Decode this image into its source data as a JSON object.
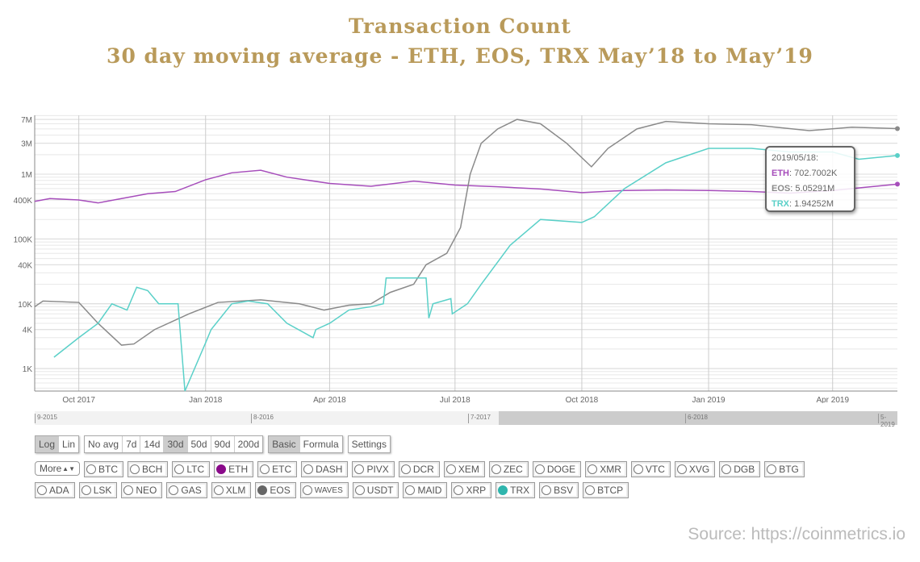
{
  "title_line1": "Transaction Count",
  "title_line2": "30 day moving average - ETH, EOS, TRX May’18 to May’19",
  "source": "Source: https://coinmetrics.io",
  "colors": {
    "ETH": "#a64dbb",
    "EOS": "#8a8a8a",
    "TRX": "#5ad0c8",
    "title": "#b99a5a"
  },
  "chart_data": {
    "type": "line",
    "title": "Transaction Count",
    "subtitle": "30 day moving average - ETH, EOS, TRX May’18 to May’19",
    "y_scale": "log",
    "ylim": [
      450,
      8100000
    ],
    "xlim": [
      "2017-08-30",
      "2019-05-18"
    ],
    "grid": true,
    "y_ticks": [
      {
        "v": 7000000,
        "label": "7M"
      },
      {
        "v": 3000000,
        "label": "3M"
      },
      {
        "v": 1000000,
        "label": "1M"
      },
      {
        "v": 400000,
        "label": "400K"
      },
      {
        "v": 100000,
        "label": "100K"
      },
      {
        "v": 40000,
        "label": "40K"
      },
      {
        "v": 10000,
        "label": "10K"
      },
      {
        "v": 4000,
        "label": "4K"
      },
      {
        "v": 1000,
        "label": "1K"
      }
    ],
    "x_ticks": [
      {
        "d": "2017-10-01",
        "label": "Oct 2017"
      },
      {
        "d": "2018-01-01",
        "label": "Jan 2018"
      },
      {
        "d": "2018-04-01",
        "label": "Apr 2018"
      },
      {
        "d": "2018-07-01",
        "label": "Jul 2018"
      },
      {
        "d": "2018-10-01",
        "label": "Oct 2018"
      },
      {
        "d": "2019-01-01",
        "label": "Jan 2019"
      },
      {
        "d": "2019-04-01",
        "label": "Apr 2019"
      }
    ],
    "series": [
      {
        "name": "ETH",
        "points": [
          [
            "2017-08-30",
            380000
          ],
          [
            "2017-09-10",
            420000
          ],
          [
            "2017-10-01",
            400000
          ],
          [
            "2017-10-15",
            360000
          ],
          [
            "2017-11-01",
            420000
          ],
          [
            "2017-11-20",
            500000
          ],
          [
            "2017-12-10",
            540000
          ],
          [
            "2018-01-01",
            820000
          ],
          [
            "2018-01-20",
            1050000
          ],
          [
            "2018-02-10",
            1150000
          ],
          [
            "2018-03-01",
            900000
          ],
          [
            "2018-04-01",
            720000
          ],
          [
            "2018-05-01",
            650000
          ],
          [
            "2018-06-01",
            780000
          ],
          [
            "2018-07-01",
            680000
          ],
          [
            "2018-08-01",
            640000
          ],
          [
            "2018-09-01",
            590000
          ],
          [
            "2018-10-01",
            520000
          ],
          [
            "2018-11-01",
            560000
          ],
          [
            "2018-12-01",
            570000
          ],
          [
            "2019-01-01",
            560000
          ],
          [
            "2019-02-01",
            540000
          ],
          [
            "2019-03-01",
            510000
          ],
          [
            "2019-04-01",
            560000
          ],
          [
            "2019-05-18",
            702700
          ]
        ]
      },
      {
        "name": "EOS",
        "points": [
          [
            "2017-08-30",
            9000
          ],
          [
            "2017-09-05",
            11000
          ],
          [
            "2017-10-01",
            10500
          ],
          [
            "2017-10-15",
            5000
          ],
          [
            "2017-11-01",
            2300
          ],
          [
            "2017-11-10",
            2400
          ],
          [
            "2017-11-25",
            4000
          ],
          [
            "2017-12-20",
            7000
          ],
          [
            "2018-01-10",
            10500
          ],
          [
            "2018-02-10",
            11500
          ],
          [
            "2018-03-10",
            10000
          ],
          [
            "2018-03-28",
            8000
          ],
          [
            "2018-04-15",
            9500
          ],
          [
            "2018-05-01",
            10000
          ],
          [
            "2018-05-15",
            15000
          ],
          [
            "2018-06-01",
            20000
          ],
          [
            "2018-06-10",
            40000
          ],
          [
            "2018-06-25",
            60000
          ],
          [
            "2018-07-05",
            150000
          ],
          [
            "2018-07-12",
            1000000
          ],
          [
            "2018-07-20",
            3000000
          ],
          [
            "2018-08-01",
            5000000
          ],
          [
            "2018-08-15",
            7000000
          ],
          [
            "2018-09-01",
            6000000
          ],
          [
            "2018-09-20",
            3000000
          ],
          [
            "2018-10-08",
            1300000
          ],
          [
            "2018-10-20",
            2500000
          ],
          [
            "2018-11-10",
            5000000
          ],
          [
            "2018-12-01",
            6500000
          ],
          [
            "2019-01-01",
            6000000
          ],
          [
            "2019-02-01",
            5800000
          ],
          [
            "2019-03-15",
            4700000
          ],
          [
            "2019-04-15",
            5300000
          ],
          [
            "2019-05-18",
            5052910
          ]
        ]
      },
      {
        "name": "TRX",
        "points": [
          [
            "2017-09-13",
            1500
          ],
          [
            "2017-10-01",
            3000
          ],
          [
            "2017-10-15",
            5000
          ],
          [
            "2017-10-25",
            10000
          ],
          [
            "2017-11-05",
            8000
          ],
          [
            "2017-11-12",
            18000
          ],
          [
            "2017-11-20",
            16000
          ],
          [
            "2017-11-28",
            10000
          ],
          [
            "2017-12-12",
            10000
          ],
          [
            "2017-12-17",
            450
          ],
          [
            "2018-01-01",
            2500
          ],
          [
            "2018-01-05",
            4000
          ],
          [
            "2018-01-20",
            10000
          ],
          [
            "2018-02-01",
            11000
          ],
          [
            "2018-02-15",
            10000
          ],
          [
            "2018-03-01",
            5000
          ],
          [
            "2018-03-20",
            3000
          ],
          [
            "2018-03-22",
            4000
          ],
          [
            "2018-04-01",
            5000
          ],
          [
            "2018-04-15",
            8000
          ],
          [
            "2018-05-01",
            9000
          ],
          [
            "2018-05-10",
            10000
          ],
          [
            "2018-05-12",
            25000
          ],
          [
            "2018-06-10",
            25000
          ],
          [
            "2018-06-12",
            6000
          ],
          [
            "2018-06-15",
            10000
          ],
          [
            "2018-06-28",
            12000
          ],
          [
            "2018-06-29",
            7000
          ],
          [
            "2018-07-10",
            10000
          ],
          [
            "2018-07-20",
            20000
          ],
          [
            "2018-08-10",
            80000
          ],
          [
            "2018-09-01",
            200000
          ],
          [
            "2018-10-01",
            180000
          ],
          [
            "2018-10-10",
            220000
          ],
          [
            "2018-11-01",
            600000
          ],
          [
            "2018-12-01",
            1500000
          ],
          [
            "2019-01-01",
            2500000
          ],
          [
            "2019-02-01",
            2500000
          ],
          [
            "2019-03-01",
            2200000
          ],
          [
            "2019-04-01",
            2200000
          ],
          [
            "2019-04-20",
            1700000
          ],
          [
            "2019-05-18",
            1942520
          ]
        ]
      }
    ],
    "tooltip": {
      "date": "2019/05/18:",
      "rows": [
        {
          "name": "ETH",
          "value": "702.7002K"
        },
        {
          "name": "EOS",
          "value": "5.05291M"
        },
        {
          "name": "TRX",
          "value": "1.94252M"
        }
      ]
    }
  },
  "navigator": {
    "labels": [
      "9-2015",
      "8-2016",
      "7-2017",
      "6-2018",
      "5-2019"
    ]
  },
  "controls": {
    "scale": [
      {
        "label": "Log",
        "on": true
      },
      {
        "label": "Lin",
        "on": false
      }
    ],
    "avg": [
      {
        "label": "No avg",
        "on": false
      },
      {
        "label": "7d",
        "on": false
      },
      {
        "label": "14d",
        "on": false
      },
      {
        "label": "30d",
        "on": true
      },
      {
        "label": "50d",
        "on": false
      },
      {
        "label": "90d",
        "on": false
      },
      {
        "label": "200d",
        "on": false
      }
    ],
    "mode": [
      {
        "label": "Basic",
        "on": true
      },
      {
        "label": "Formula",
        "on": false
      }
    ],
    "settings": "Settings",
    "more": "More"
  },
  "assets_row1": [
    {
      "label": "BTC"
    },
    {
      "label": "BCH"
    },
    {
      "label": "LTC"
    },
    {
      "label": "ETH",
      "color": "#8a0a8a"
    },
    {
      "label": "ETC"
    },
    {
      "label": "DASH"
    },
    {
      "label": "PIVX"
    },
    {
      "label": "DCR"
    },
    {
      "label": "XEM"
    },
    {
      "label": "ZEC"
    },
    {
      "label": "DOGE"
    },
    {
      "label": "XMR"
    },
    {
      "label": "VTC"
    },
    {
      "label": "XVG"
    },
    {
      "label": "DGB"
    },
    {
      "label": "BTG"
    }
  ],
  "assets_row2": [
    {
      "label": "ADA"
    },
    {
      "label": "LSK"
    },
    {
      "label": "NEO"
    },
    {
      "label": "GAS"
    },
    {
      "label": "XLM"
    },
    {
      "label": "EOS",
      "color": "#666666"
    },
    {
      "label": "WAVES"
    },
    {
      "label": "USDT"
    },
    {
      "label": "MAID"
    },
    {
      "label": "XRP"
    },
    {
      "label": "TRX",
      "color": "#2fb5ad"
    },
    {
      "label": "BSV"
    },
    {
      "label": "BTCP"
    }
  ]
}
